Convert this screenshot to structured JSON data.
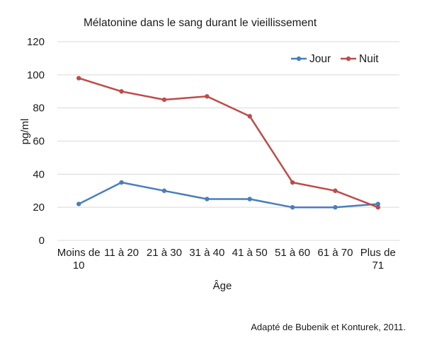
{
  "chart_data": {
    "type": "line",
    "title": "Mélatonine dans le sang durant le vieillissement",
    "xlabel": "Âge",
    "ylabel": "pg/ml",
    "categories": [
      [
        "Moins de",
        "10"
      ],
      [
        "11 à 20"
      ],
      [
        "21 à 30"
      ],
      [
        "31 à 40"
      ],
      [
        "41 à 50"
      ],
      [
        "51 à 60"
      ],
      [
        "61 à 70"
      ],
      [
        "Plus de",
        "71"
      ]
    ],
    "ylim": [
      0,
      120
    ],
    "yticks": [
      "0",
      "20",
      "40",
      "60",
      "80",
      "100",
      "120"
    ],
    "grid": true,
    "legend_position": "top-right",
    "series": [
      {
        "name": "Jour",
        "color": "#4a7ebb",
        "values": [
          22,
          35,
          30,
          25,
          25,
          20,
          20,
          22
        ]
      },
      {
        "name": "Nuit",
        "color": "#be4b48",
        "values": [
          98,
          90,
          85,
          87,
          75,
          35,
          30,
          20
        ]
      }
    ],
    "source": "Adapté de Bubenik et Konturek, 2011."
  }
}
